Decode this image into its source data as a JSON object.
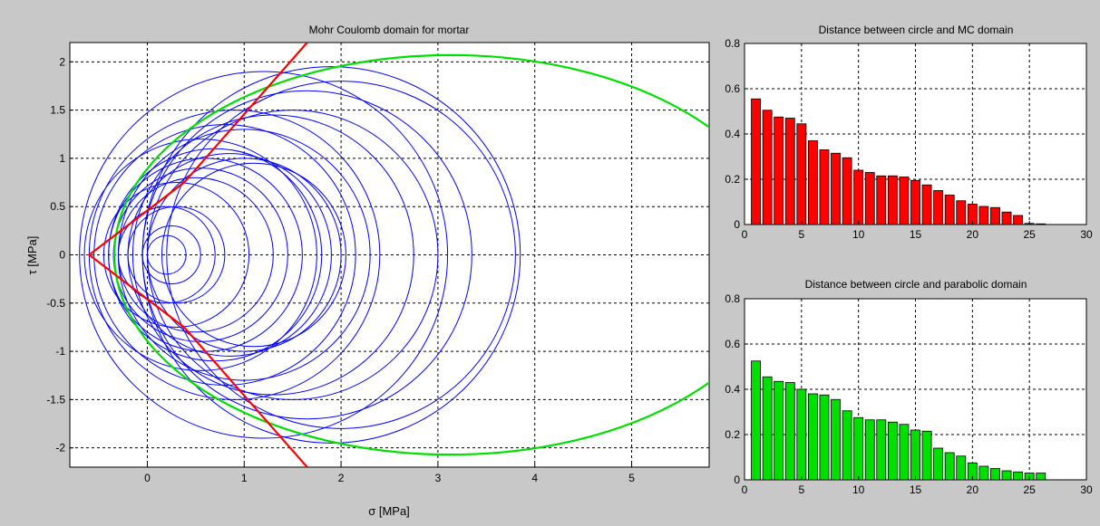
{
  "figure": {
    "background": "#c8c8c8",
    "plot_background": "#ffffff"
  },
  "chart_data": [
    {
      "type": "line",
      "title": "Mohr Coulomb domain for mortar",
      "xlabel": "σ [MPa]",
      "ylabel": "τ [MPa]",
      "xlim": [
        -0.8,
        5.8
      ],
      "ylim": [
        -2.2,
        2.2
      ],
      "xticks": [
        0,
        1,
        2,
        3,
        4,
        5
      ],
      "yticks": [
        -2,
        -1.5,
        -1,
        -0.5,
        0,
        0.5,
        1,
        1.5,
        2
      ],
      "grid": true,
      "mohr_circles": {
        "color": "#0000ff",
        "circles": [
          {
            "center": 0.2,
            "radius": 0.2
          },
          {
            "center": 0.25,
            "radius": 0.3
          },
          {
            "center": 0.2,
            "radius": 0.5
          },
          {
            "center": 0.3,
            "radius": 0.5
          },
          {
            "center": 0.3,
            "radius": 0.75
          },
          {
            "center": 0.5,
            "radius": 0.8
          },
          {
            "center": 0.55,
            "radius": 0.9
          },
          {
            "center": 0.6,
            "radius": 1.0
          },
          {
            "center": 0.7,
            "radius": 1.1
          },
          {
            "center": 0.85,
            "radius": 1.05
          },
          {
            "center": 1.0,
            "radius": 1.0
          },
          {
            "center": 1.1,
            "radius": 0.95
          },
          {
            "center": 0.55,
            "radius": 1.2
          },
          {
            "center": 0.8,
            "radius": 1.35
          },
          {
            "center": 1.0,
            "radius": 1.3
          },
          {
            "center": 0.9,
            "radius": 1.5
          },
          {
            "center": 1.3,
            "radius": 1.45
          },
          {
            "center": 1.5,
            "radius": 1.5
          },
          {
            "center": 1.65,
            "radius": 1.7
          },
          {
            "center": 2.0,
            "radius": 1.8
          },
          {
            "center": 1.9,
            "radius": 1.95
          },
          {
            "center": 1.2,
            "radius": 1.9
          }
        ]
      },
      "series": [
        {
          "name": "",
          "color": "#ff0000",
          "x": [
            1.65,
            0.38,
            -0.6,
            0.38,
            1.65
          ],
          "y": [
            2.2,
            0.75,
            0.0,
            -0.75,
            -2.2
          ]
        },
        {
          "name": "",
          "color": "#00e000",
          "curve": "parabolic_envelope",
          "center": 3.13,
          "semi_x": 3.47,
          "semi_y": 2.07
        }
      ]
    },
    {
      "type": "bar",
      "title": "Distance between circle and MC domain",
      "bar_color": "#ff0000",
      "x": [
        1,
        2,
        3,
        4,
        5,
        6,
        7,
        8,
        9,
        10,
        11,
        12,
        13,
        14,
        15,
        16,
        17,
        18,
        19,
        20,
        21,
        22,
        23,
        24,
        25,
        26
      ],
      "values": [
        0.555,
        0.505,
        0.475,
        0.47,
        0.445,
        0.37,
        0.33,
        0.315,
        0.295,
        0.24,
        0.23,
        0.215,
        0.215,
        0.21,
        0.195,
        0.175,
        0.15,
        0.13,
        0.105,
        0.09,
        0.08,
        0.075,
        0.055,
        0.04,
        0.005,
        0.003
      ],
      "xlim": [
        0,
        30
      ],
      "ylim": [
        0,
        0.8
      ],
      "xticks": [
        0,
        5,
        10,
        15,
        20,
        25,
        30
      ],
      "yticks": [
        0,
        0.2,
        0.4,
        0.6,
        0.8
      ],
      "grid": true
    },
    {
      "type": "bar",
      "title": "Distance between circle and parabolic domain",
      "bar_color": "#00e000",
      "x": [
        1,
        2,
        3,
        4,
        5,
        6,
        7,
        8,
        9,
        10,
        11,
        12,
        13,
        14,
        15,
        16,
        17,
        18,
        19,
        20,
        21,
        22,
        23,
        24,
        25,
        26
      ],
      "values": [
        0.525,
        0.455,
        0.435,
        0.43,
        0.4,
        0.38,
        0.375,
        0.355,
        0.305,
        0.275,
        0.265,
        0.265,
        0.255,
        0.245,
        0.22,
        0.215,
        0.14,
        0.12,
        0.105,
        0.075,
        0.06,
        0.05,
        0.04,
        0.035,
        0.03,
        0.03
      ],
      "xlim": [
        0,
        30
      ],
      "ylim": [
        0,
        0.8
      ],
      "xticks": [
        0,
        5,
        10,
        15,
        20,
        25,
        30
      ],
      "yticks": [
        0,
        0.2,
        0.4,
        0.6,
        0.8
      ],
      "grid": true
    }
  ]
}
